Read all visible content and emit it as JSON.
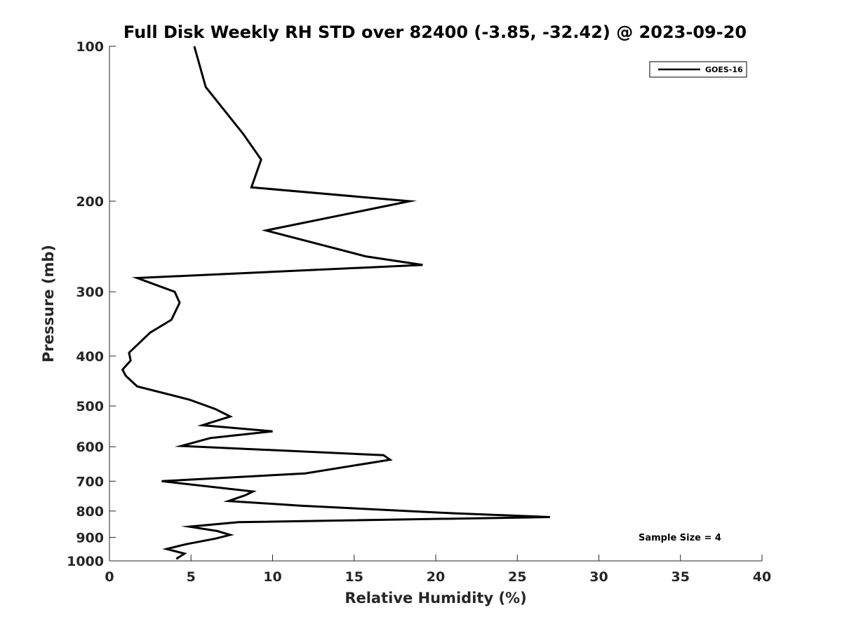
{
  "chart_data": {
    "type": "line",
    "title": "Full Disk Weekly RH STD over 82400 (-3.85, -32.42) @ 2023-09-20",
    "xlabel": "Relative Humidity (%)",
    "ylabel": "Pressure (mb)",
    "xlim": [
      0,
      40
    ],
    "ylim": [
      100,
      1000
    ],
    "yscale": "log",
    "y_reversed": true,
    "xticks": [
      0,
      5,
      10,
      15,
      20,
      25,
      30,
      35,
      40
    ],
    "yticks": [
      100,
      200,
      300,
      400,
      500,
      600,
      700,
      800,
      900,
      1000
    ],
    "grid": false,
    "legend": {
      "position": "top-right",
      "entries": [
        "GOES-16"
      ]
    },
    "annotation": "Sample Size = 4",
    "series": [
      {
        "name": "GOES-16",
        "color": "#000000",
        "x": [
          5.2,
          5.9,
          8.2,
          9.3,
          8.7,
          18.4,
          9.6,
          15.7,
          19.2,
          1.7,
          4.0,
          4.3,
          3.8,
          2.5,
          1.2,
          1.3,
          0.8,
          1.0,
          1.7,
          4.9,
          6.5,
          7.4,
          5.7,
          10.0,
          6.2,
          4.4,
          16.8,
          17.2,
          12.0,
          3.2,
          8.8,
          8.3,
          7.3,
          11.7,
          21.0,
          27.0,
          7.9,
          4.9,
          6.6,
          7.4,
          6.5,
          4.7,
          3.5,
          4.6,
          4.1
        ],
        "y": [
          100,
          120,
          148,
          166,
          188,
          200,
          228,
          256,
          266,
          282,
          300,
          315,
          340,
          360,
          394,
          408,
          425,
          437,
          458,
          486,
          507,
          524,
          545,
          560,
          577,
          598,
          623,
          636,
          676,
          700,
          733,
          746,
          765,
          781,
          808,
          822,
          841,
          858,
          875,
          890,
          905,
          928,
          948,
          968,
          991
        ]
      }
    ]
  }
}
